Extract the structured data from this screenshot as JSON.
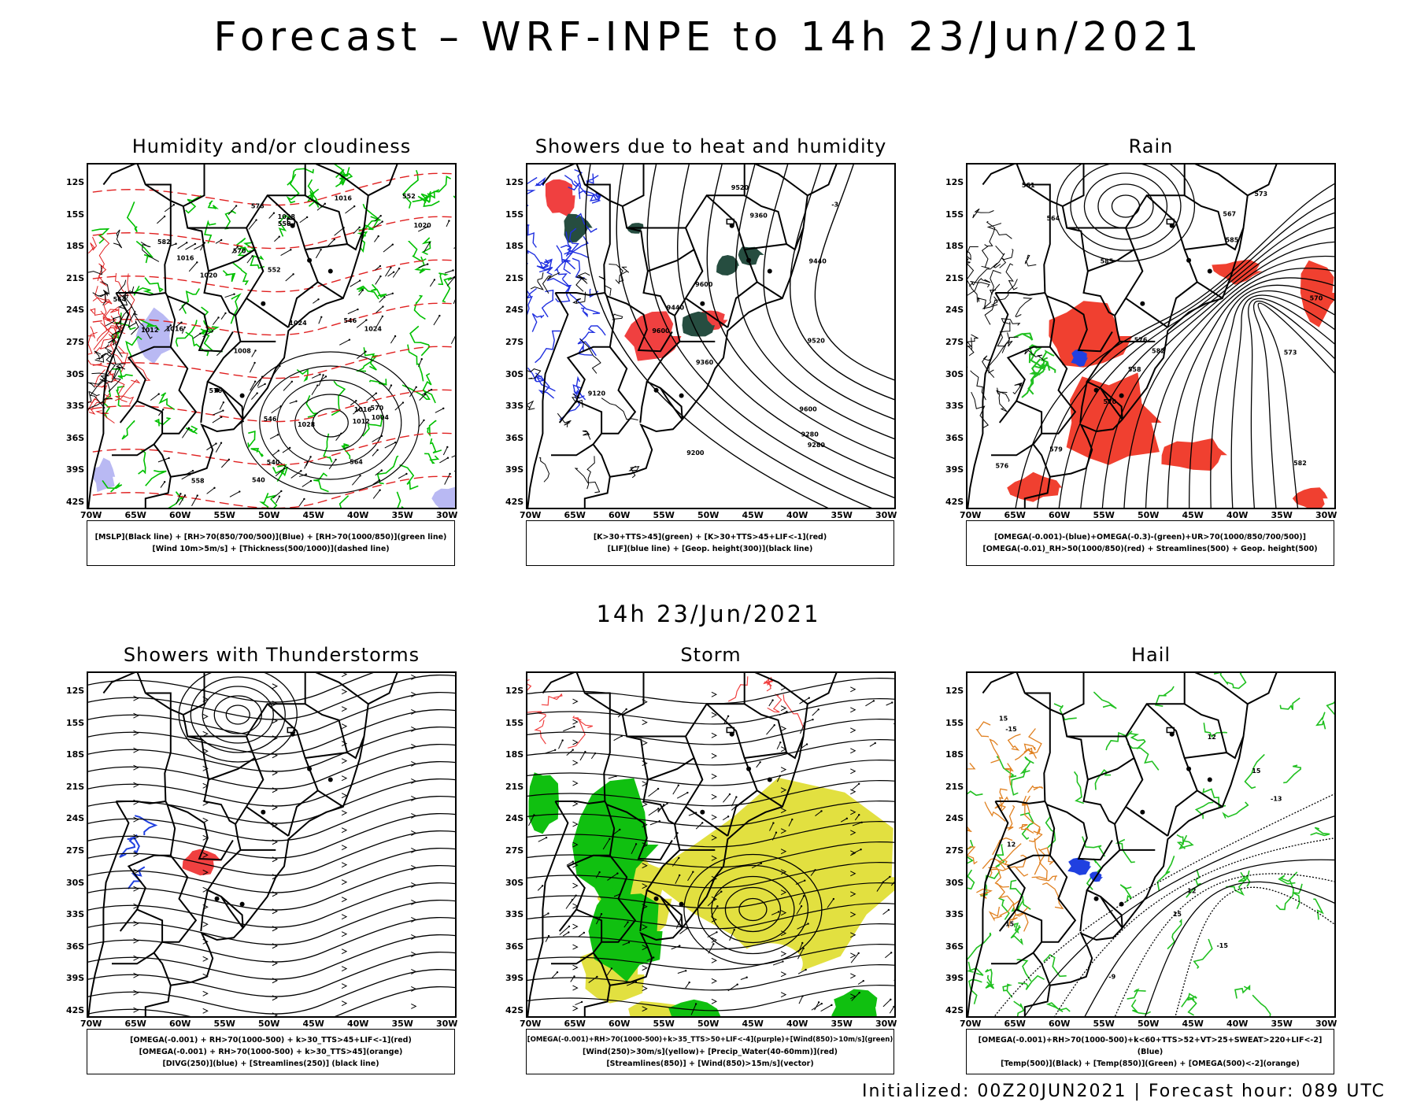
{
  "main_title": "Forecast – WRF-INPE to 14h 23/Jun/2021",
  "middle_title": "14h 23/Jun/2021",
  "footer": "Initialized: 00Z20JUN2021 | Forecast hour: 089 UTC",
  "axes": {
    "lat_labels": [
      "12S",
      "15S",
      "18S",
      "21S",
      "24S",
      "27S",
      "30S",
      "33S",
      "36S",
      "39S",
      "42S"
    ],
    "lon_labels": [
      "70W",
      "65W",
      "60W",
      "55W",
      "50W",
      "45W",
      "40W",
      "35W",
      "30W"
    ]
  },
  "panels": [
    {
      "id": "humidity",
      "title": "Humidity and/or cloudiness",
      "legend": [
        "[MSLP](Black line) + [RH>70(850/700/500)](Blue) + [RH>70(1000/850)](green line)",
        "[Wind 10m>5m/s] + [Thickness(500/1000)](dashed line)"
      ],
      "contour_labels": [
        "1016",
        "1016",
        "1016",
        "1012",
        "1020",
        "1020",
        "1024",
        "1024",
        "1028",
        "1028",
        "1008",
        "1012",
        "1004",
        "1016",
        "576",
        "570",
        "564",
        "558",
        "552",
        "546",
        "546",
        "540",
        "552",
        "558",
        "564",
        "570",
        "576",
        "582",
        "540"
      ],
      "colors": {
        "isobar": "#000000",
        "rh_low": "#00c000",
        "rh_mid": "#a8a8f0",
        "thickness": "#e02020"
      }
    },
    {
      "id": "showers",
      "title": "Showers due to heat and humidity",
      "legend": [
        "[K>30+TTS>45](green) + [K>30+TTS>45+LIF<-1](red)",
        "[LIF](blue line) + [Geop. height(300)](black line)"
      ],
      "contour_labels": [
        "9600",
        "9600",
        "9600",
        "9520",
        "9520",
        "9440",
        "9440",
        "9360",
        "9360",
        "9280",
        "9280",
        "9200",
        "9120",
        "-3"
      ],
      "colors": {
        "green": "#264d40",
        "red": "#f04040",
        "lif": "#2030e0",
        "geop": "#000000"
      }
    },
    {
      "id": "rain",
      "title": "Rain",
      "legend": [
        "[OMEGA(-0.001)-(blue)+OMEGA(-0.3)-(green)+UR>70(1000/850/700/500)]",
        "[OMEGA(-0.01)_RH>50(1000/850)(red) + Streamlines(500) + Geop. height(500)"
      ],
      "contour_labels": [
        "585",
        "585",
        "582",
        "582",
        "579",
        "576",
        "573",
        "570",
        "567",
        "576",
        "564",
        "561",
        "558",
        "570",
        "573"
      ],
      "colors": {
        "red": "#f04030",
        "blue": "#2040e0",
        "green": "#20c020"
      }
    },
    {
      "id": "thunder",
      "title": "Showers with Thunderstorms",
      "legend": [
        "[OMEGA(-0.001) + RH>70(1000-500) + k>30_TTS>45+LIF<-1](red)",
        "[OMEGA(-0.001) + RH>70(1000-500) + k>30_TTS>45](orange)",
        "[DIVG(250)](blue) + [Streamlines(250)] (black line)"
      ],
      "contour_labels": [],
      "colors": {
        "red": "#f04040",
        "blue": "#2040e0",
        "orange": "#f08020"
      }
    },
    {
      "id": "storm",
      "title": "Storm",
      "legend": [
        "[OMEGA(-0.001)+RH>70(1000-500)+k>35_TTS>50+LIF<-4](purple)+[Wind(850)>10m/s](green)",
        "[Wind(250)>30m/s](yellow)+ [Precip_Water(40-60mm)](red)",
        "[Streamlines(850)] + [Wind(850)>15m/s](vector)"
      ],
      "contour_labels": [],
      "colors": {
        "yellow": "#e2e040",
        "green": "#10c010",
        "red": "#f04040"
      }
    },
    {
      "id": "hail",
      "title": "Hail",
      "legend": [
        "[OMEGA(-0.001)+RH>70(1000-500)+k<60+TTS>52+VT>25+SWEAT>220+LIF<-2](Blue)",
        "[Temp(500)](Black) + [Temp(850)](Green) + [OMEGA(500)<-2](orange)"
      ],
      "contour_labels": [
        "15",
        "15",
        "15",
        "12",
        "12",
        "-15",
        "-13",
        "-15",
        "15",
        "12",
        "-9"
      ],
      "colors": {
        "green": "#20c020",
        "blue": "#2040e0",
        "orange": "#e08020",
        "black": "#000000"
      }
    }
  ]
}
